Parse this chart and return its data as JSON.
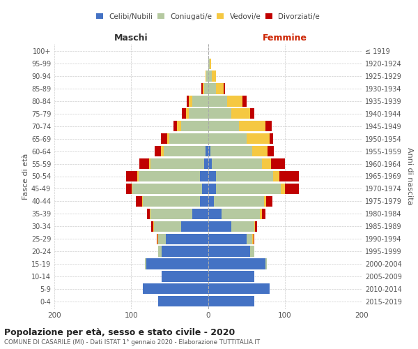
{
  "age_groups": [
    "0-4",
    "5-9",
    "10-14",
    "15-19",
    "20-24",
    "25-29",
    "30-34",
    "35-39",
    "40-44",
    "45-49",
    "50-54",
    "55-59",
    "60-64",
    "65-69",
    "70-74",
    "75-79",
    "80-84",
    "85-89",
    "90-94",
    "95-99",
    "100+"
  ],
  "birth_years": [
    "2015-2019",
    "2010-2014",
    "2005-2009",
    "2000-2004",
    "1995-1999",
    "1990-1994",
    "1985-1989",
    "1980-1984",
    "1975-1979",
    "1970-1974",
    "1965-1969",
    "1960-1964",
    "1955-1959",
    "1950-1954",
    "1945-1949",
    "1940-1944",
    "1935-1939",
    "1930-1934",
    "1925-1929",
    "1920-1924",
    "≤ 1919"
  ],
  "male": {
    "celibi": [
      65,
      85,
      60,
      80,
      60,
      55,
      35,
      20,
      10,
      8,
      10,
      5,
      3,
      0,
      0,
      0,
      0,
      0,
      0,
      0,
      0
    ],
    "coniugati": [
      0,
      0,
      0,
      2,
      5,
      10,
      35,
      55,
      75,
      90,
      80,
      70,
      55,
      50,
      35,
      25,
      20,
      5,
      2,
      0,
      0
    ],
    "vedovi": [
      0,
      0,
      0,
      0,
      0,
      1,
      1,
      1,
      1,
      1,
      2,
      2,
      3,
      3,
      5,
      4,
      5,
      2,
      1,
      0,
      0
    ],
    "divorziati": [
      0,
      0,
      0,
      0,
      0,
      1,
      3,
      3,
      8,
      8,
      15,
      12,
      8,
      8,
      5,
      5,
      3,
      2,
      0,
      0,
      0
    ]
  },
  "female": {
    "nubili": [
      60,
      80,
      60,
      75,
      55,
      50,
      30,
      18,
      8,
      10,
      10,
      5,
      3,
      0,
      0,
      0,
      0,
      0,
      0,
      0,
      0
    ],
    "coniugate": [
      0,
      0,
      0,
      2,
      5,
      8,
      30,
      50,
      65,
      85,
      75,
      65,
      55,
      50,
      40,
      30,
      25,
      10,
      5,
      2,
      0
    ],
    "vedove": [
      0,
      0,
      0,
      0,
      0,
      1,
      1,
      2,
      3,
      5,
      8,
      12,
      20,
      30,
      35,
      25,
      20,
      10,
      5,
      2,
      0
    ],
    "divorziate": [
      0,
      0,
      0,
      0,
      0,
      1,
      3,
      5,
      8,
      18,
      25,
      18,
      8,
      5,
      8,
      5,
      5,
      2,
      0,
      0,
      0
    ]
  },
  "colors": {
    "celibi": "#4472c4",
    "coniugati": "#b5c9a0",
    "vedovi": "#f5c842",
    "divorziati": "#c00000"
  },
  "xlim": 200,
  "title": "Popolazione per età, sesso e stato civile - 2020",
  "subtitle": "COMUNE DI CASARILE (MI) - Dati ISTAT 1° gennaio 2020 - Elaborazione TUTTITALIA.IT",
  "ylabel_left": "Fasce di età",
  "ylabel_right": "Anni di nascita",
  "xlabel_left": "Maschi",
  "xlabel_right": "Femmine",
  "legend_labels": [
    "Celibi/Nubili",
    "Coniugati/e",
    "Vedovi/e",
    "Divorziati/e"
  ],
  "background_color": "#ffffff",
  "grid_color": "#cccccc"
}
